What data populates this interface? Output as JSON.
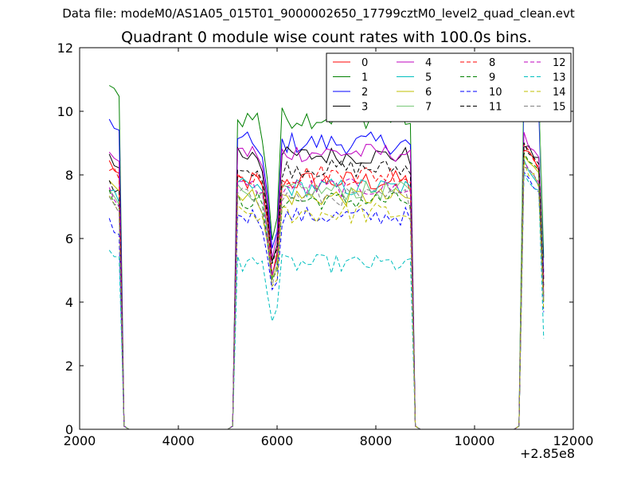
{
  "figure": {
    "suptitle": "Data file: modeM0/AS1A05_015T01_9000002650_17799cztM0_level2_quad_clean.evt",
    "title": "Quadrant 0 module wise count rates with 100.0s bins.",
    "x_offset_label": "+2.85e8"
  },
  "chart_data": {
    "type": "line",
    "title": "Quadrant 0 module wise count rates with 100.0s bins.",
    "xlabel": "",
    "ylabel": "",
    "xlim": [
      2000,
      12000
    ],
    "ylim": [
      0,
      12
    ],
    "x_offset": 285000000,
    "xticks": [
      2000,
      4000,
      6000,
      8000,
      10000,
      12000
    ],
    "yticks": [
      0,
      2,
      4,
      6,
      8,
      10,
      12
    ],
    "grid": false,
    "legend_position": "top-right",
    "legend_columns": 4,
    "series": [
      {
        "name": "0",
        "color": "#ff0000",
        "dash": "solid",
        "base": 7.8,
        "noise": 0.35,
        "d1": 8.4,
        "d2": 7.9,
        "d3": 8.8
      },
      {
        "name": "1",
        "color": "#008000",
        "dash": "solid",
        "base": 9.8,
        "noise": 0.35,
        "d1": 10.8,
        "d2": 9.7,
        "d3": 11.2
      },
      {
        "name": "2",
        "color": "#0000ff",
        "dash": "solid",
        "base": 9.0,
        "noise": 0.35,
        "d1": 9.7,
        "d2": 9.2,
        "d3": 10.5
      },
      {
        "name": "3",
        "color": "#000000",
        "dash": "solid",
        "base": 8.6,
        "noise": 0.3,
        "d1": 8.6,
        "d2": 8.8,
        "d3": 9.0
      },
      {
        "name": "4",
        "color": "#bf00bf",
        "dash": "solid",
        "base": 8.7,
        "noise": 0.3,
        "d1": 8.8,
        "d2": 8.9,
        "d3": 9.2
      },
      {
        "name": "5",
        "color": "#00bfbf",
        "dash": "solid",
        "base": 7.6,
        "noise": 0.3,
        "d1": 7.6,
        "d2": 7.7,
        "d3": 8.4
      },
      {
        "name": "6",
        "color": "#bfbf00",
        "dash": "solid",
        "base": 7.3,
        "noise": 0.3,
        "d1": 7.9,
        "d2": 7.5,
        "d3": 8.6
      },
      {
        "name": "7",
        "color": "#77c877",
        "dash": "solid",
        "base": 7.5,
        "noise": 0.3,
        "d1": 7.6,
        "d2": 7.6,
        "d3": 11.8
      },
      {
        "name": "8",
        "color": "#ff0000",
        "dash": "dashed",
        "base": 8.0,
        "noise": 0.35,
        "d1": 8.3,
        "d2": 8.0,
        "d3": 9.0
      },
      {
        "name": "9",
        "color": "#008000",
        "dash": "dashed",
        "base": 7.2,
        "noise": 0.3,
        "d1": 7.4,
        "d2": 7.3,
        "d3": 8.6
      },
      {
        "name": "10",
        "color": "#0000ff",
        "dash": "dashed",
        "base": 6.7,
        "noise": 0.3,
        "d1": 6.5,
        "d2": 6.8,
        "d3": 8.0
      },
      {
        "name": "11",
        "color": "#000000",
        "dash": "dashed",
        "base": 8.2,
        "noise": 0.3,
        "d1": 7.8,
        "d2": 8.3,
        "d3": 9.0
      },
      {
        "name": "12",
        "color": "#bf00bf",
        "dash": "dashed",
        "base": 7.6,
        "noise": 0.3,
        "d1": 7.5,
        "d2": 7.7,
        "d3": 8.4
      },
      {
        "name": "13",
        "color": "#00bfbf",
        "dash": "dashed",
        "base": 5.2,
        "noise": 0.3,
        "d1": 5.7,
        "d2": 5.5,
        "d3": 8.0
      },
      {
        "name": "14",
        "color": "#bfbf00",
        "dash": "dashed",
        "base": 6.8,
        "noise": 0.35,
        "d1": 7.2,
        "d2": 6.9,
        "d3": 8.3
      },
      {
        "name": "15",
        "color": "#808080",
        "dash": "dashed",
        "base": 7.3,
        "noise": 0.3,
        "d1": 7.2,
        "d2": 7.4,
        "d3": 8.4
      }
    ]
  }
}
